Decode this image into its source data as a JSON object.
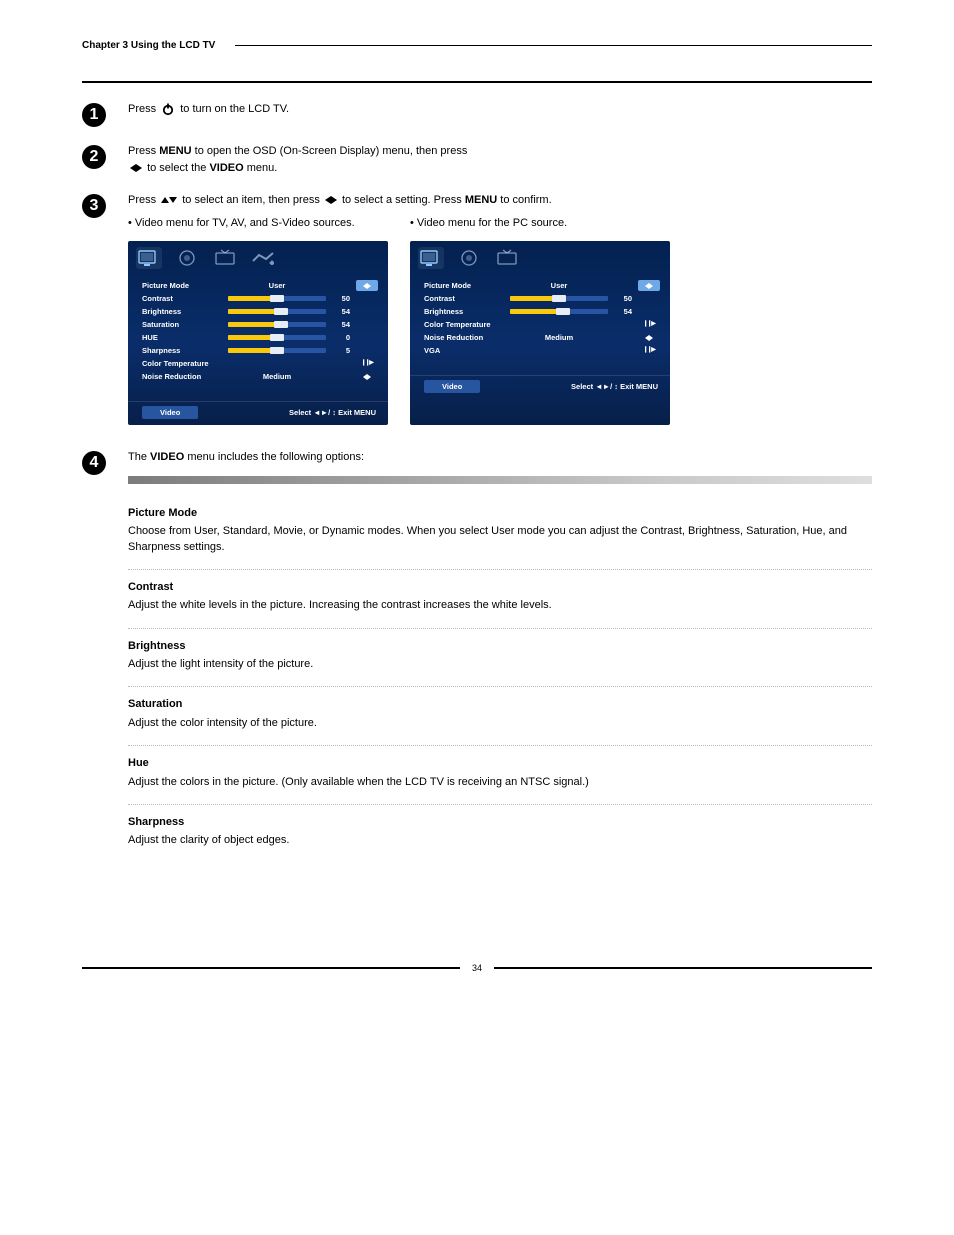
{
  "header": {
    "chapter_title": "Chapter 3 Using the LCD TV"
  },
  "steps": {
    "s1": {
      "num": "1",
      "text_a": "Press ",
      "text_b": " to turn on the LCD TV."
    },
    "s2": {
      "num": "2",
      "text_a": "Press ",
      "kw_menu": "MENU",
      "text_b": " to open the OSD (On-Screen Display) menu, then press ",
      "text_c": " to select the ",
      "kw_video": "VIDEO",
      "text_d": " menu."
    },
    "s3": {
      "num": "3",
      "text_a": "Press ",
      "text_b": " to select an item, then press ",
      "text_c": " to select a setting. Press ",
      "kw_menu": "MENU",
      "text_d": " to confirm.",
      "bullet_left": "Video menu for TV, AV, and S-Video sources.",
      "bullet_right": "Video menu for the PC source."
    },
    "s4": {
      "num": "4",
      "intro_a": "The ",
      "kw_video": "VIDEO",
      "intro_b": " menu includes the following options:"
    }
  },
  "osd": {
    "tabs": [
      "video",
      "audio",
      "tv",
      "setup"
    ],
    "footer_label": "Video",
    "footer_hint": "Select ◄►/ ↕  Exit MENU",
    "left": {
      "items": [
        {
          "label": "Picture Mode",
          "value": "User",
          "type": "select",
          "fill": 0,
          "sel": true
        },
        {
          "label": "Contrast",
          "value": "50",
          "type": "slider",
          "fill": 50
        },
        {
          "label": "Brightness",
          "value": "54",
          "type": "slider",
          "fill": 54
        },
        {
          "label": "Saturation",
          "value": "54",
          "type": "slider",
          "fill": 54
        },
        {
          "label": "HUE",
          "value": "0",
          "type": "slider",
          "fill": 50
        },
        {
          "label": "Sharpness",
          "value": "5",
          "type": "slider",
          "fill": 50
        },
        {
          "label": "Color Temperature",
          "value": "",
          "type": "nav",
          "fill": 0
        },
        {
          "label": "Noise Reduction",
          "value": "Medium",
          "type": "select",
          "fill": 0
        }
      ]
    },
    "right": {
      "items": [
        {
          "label": "Picture Mode",
          "value": "User",
          "type": "select",
          "fill": 0,
          "sel": true
        },
        {
          "label": "Contrast",
          "value": "50",
          "type": "slider",
          "fill": 50
        },
        {
          "label": "Brightness",
          "value": "54",
          "type": "slider",
          "fill": 54
        },
        {
          "label": "Color Temperature",
          "value": "",
          "type": "nav",
          "fill": 0
        },
        {
          "label": "Noise Reduction",
          "value": "Medium",
          "type": "select",
          "fill": 0
        },
        {
          "label": "VGA",
          "value": "",
          "type": "nav",
          "fill": 0
        }
      ]
    }
  },
  "definitions": {
    "rows": [
      {
        "label": "Picture Mode",
        "desc": "Choose from User, Standard, Movie, or Dynamic modes. When you select User mode you can adjust the Contrast, Brightness, Saturation, Hue, and Sharpness settings."
      },
      {
        "label": "Contrast",
        "desc": "Adjust the white levels in the picture. Increasing the contrast increases the white levels."
      },
      {
        "label": "Brightness",
        "desc": "Adjust the light intensity of the picture."
      },
      {
        "label": "Saturation",
        "desc": "Adjust the color intensity of the picture."
      },
      {
        "label": "Hue",
        "desc": "Adjust the colors in the picture. (Only available when the LCD TV is receiving an NTSC signal.)"
      },
      {
        "label": "Sharpness",
        "desc": "Adjust the clarity of object edges."
      }
    ]
  },
  "page_number": "34"
}
